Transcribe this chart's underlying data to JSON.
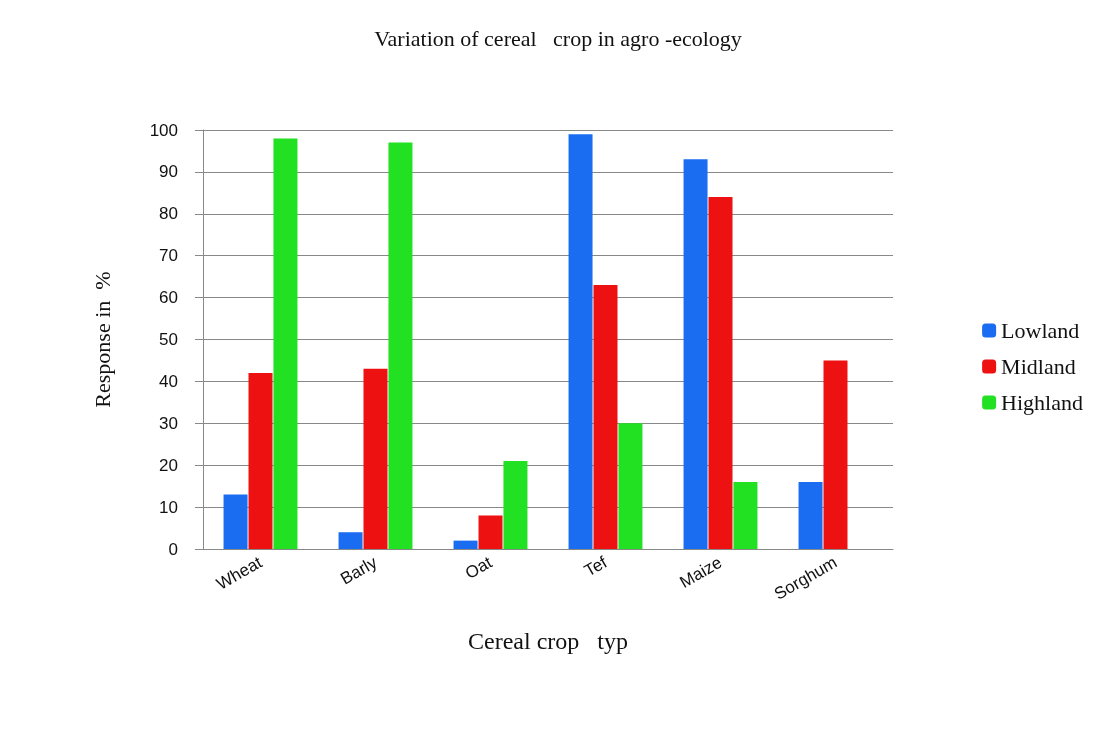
{
  "chart_data": {
    "type": "bar",
    "title": "Variation of cereal   crop in agro -ecology",
    "xlabel": "Cereal crop   typ",
    "ylabel": "Response in  %",
    "categories": [
      "Wheat",
      "Barly",
      "Oat",
      "Tef",
      "Maize",
      "Sorghum"
    ],
    "series": [
      {
        "name": "Lowland",
        "color": "#1a6cf0",
        "values": [
          13,
          4,
          2,
          99,
          93,
          16
        ]
      },
      {
        "name": "Midland",
        "color": "#ee1111",
        "values": [
          42,
          43,
          8,
          63,
          84,
          45
        ]
      },
      {
        "name": "Highland",
        "color": "#22e022",
        "values": [
          98,
          97,
          21,
          30,
          16,
          0
        ]
      }
    ],
    "ylim": [
      0,
      100
    ],
    "yticks": [
      0,
      10,
      20,
      30,
      40,
      50,
      60,
      70,
      80,
      90,
      100
    ],
    "grid": "y",
    "legend": "right"
  }
}
